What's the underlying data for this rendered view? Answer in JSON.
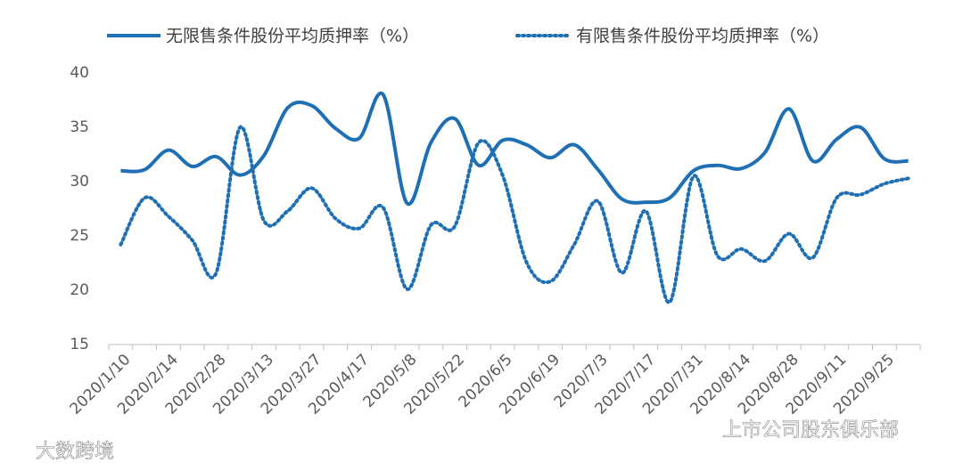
{
  "chart_data": {
    "type": "line",
    "categories": [
      "2020/1/10",
      null,
      "2020/2/14",
      null,
      "2020/2/28",
      null,
      "2020/3/13",
      null,
      "2020/3/27",
      null,
      "2020/4/17",
      null,
      "2020/5/8",
      null,
      "2020/5/22",
      null,
      "2020/6/5",
      null,
      "2020/6/19",
      null,
      "2020/7/3",
      null,
      "2020/7/17",
      null,
      "2020/7/31",
      null,
      "2020/8/14",
      null,
      "2020/8/28",
      null,
      "2020/9/11",
      null,
      "2020/9/25",
      null
    ],
    "series": [
      {
        "name": "无限售条件股份平均质押率（%）",
        "color": "#1f6fb5",
        "dash": "solid",
        "values": [
          31.0,
          31.1,
          32.9,
          31.4,
          32.3,
          30.6,
          32.4,
          36.8,
          37.0,
          34.9,
          34.0,
          38.0,
          28.0,
          33.6,
          35.8,
          31.5,
          33.8,
          33.4,
          32.2,
          33.4,
          31.1,
          28.4,
          28.1,
          28.5,
          31.0,
          31.5,
          31.2,
          32.7,
          36.7,
          31.9,
          33.9,
          35.0,
          32.1,
          31.9
        ]
      },
      {
        "name": "有限售条件股份平均质押率（%）",
        "color": "#1f6fb5",
        "dash": "dotted",
        "values": [
          24.2,
          28.5,
          26.8,
          24.6,
          21.6,
          35.0,
          26.4,
          27.3,
          29.4,
          26.6,
          25.7,
          27.6,
          20.1,
          26.0,
          25.9,
          33.6,
          30.6,
          22.6,
          20.8,
          24.2,
          28.2,
          21.6,
          27.3,
          18.9,
          30.5,
          23.2,
          23.8,
          22.7,
          25.2,
          23.0,
          28.5,
          28.8,
          29.8,
          30.3
        ]
      }
    ],
    "ylim": [
      15,
      40
    ],
    "yticks": [
      15,
      20,
      25,
      30,
      35,
      40
    ],
    "grid": false,
    "watermarks": [
      "大数跨境",
      "上市公司股东俱乐部"
    ]
  }
}
